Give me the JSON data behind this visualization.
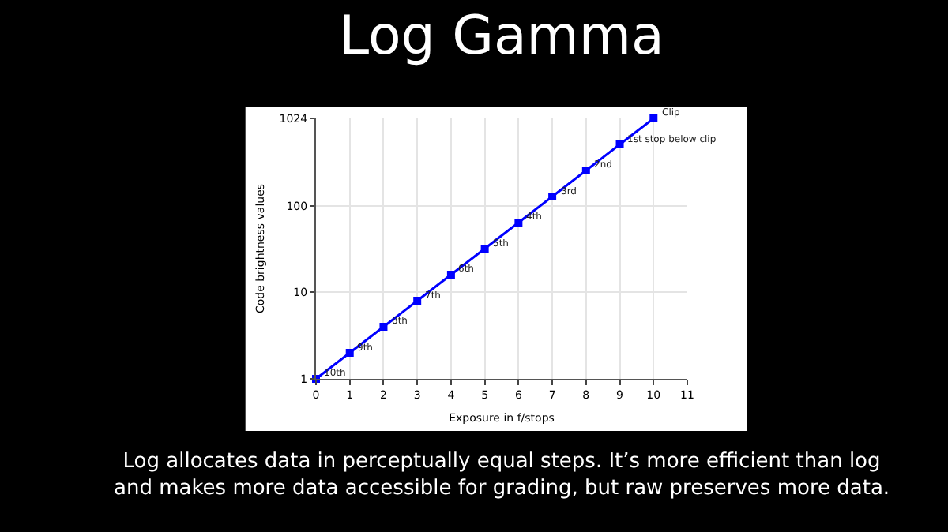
{
  "chart_data": {
    "type": "line",
    "title": "Log Gamma",
    "xlabel": "Exposure in f/stops",
    "ylabel": "Code brightness values",
    "x": [
      0,
      1,
      2,
      3,
      4,
      5,
      6,
      7,
      8,
      9,
      10
    ],
    "series": [
      {
        "color": "#0000ff",
        "values": [
          1,
          2,
          4,
          8,
          16,
          32,
          64,
          128,
          256,
          512,
          1024
        ]
      }
    ],
    "xlim": [
      0,
      11
    ],
    "xticks": [
      0,
      1,
      2,
      3,
      4,
      5,
      6,
      7,
      8,
      9,
      10,
      11
    ],
    "ylim": [
      1,
      1024
    ],
    "yticks": [
      1,
      10,
      100,
      1024
    ],
    "log": "y",
    "grid": true,
    "marker": "square",
    "line_style": "solid",
    "annotations": [
      {
        "text": "10th",
        "x": 0,
        "y": 1
      },
      {
        "text": "9th",
        "x": 1,
        "y": 2
      },
      {
        "text": "8th",
        "x": 2,
        "y": 4
      },
      {
        "text": "7th",
        "x": 3,
        "y": 8
      },
      {
        "text": "6th",
        "x": 4,
        "y": 16
      },
      {
        "text": "5th",
        "x": 5,
        "y": 32
      },
      {
        "text": "4th",
        "x": 6,
        "y": 64
      },
      {
        "text": "3rd",
        "x": 7,
        "y": 128
      },
      {
        "text": "2nd",
        "x": 8,
        "y": 256
      },
      {
        "text": "1st stop below clip",
        "x": 9,
        "y": 512
      },
      {
        "text": "Clip",
        "x": 10,
        "y": 1024
      },
      "Log allocates data in perceptually equal steps. It’s more efficient than log\nand makes more data accessible for grading, but raw preserves more data."
    ]
  }
}
